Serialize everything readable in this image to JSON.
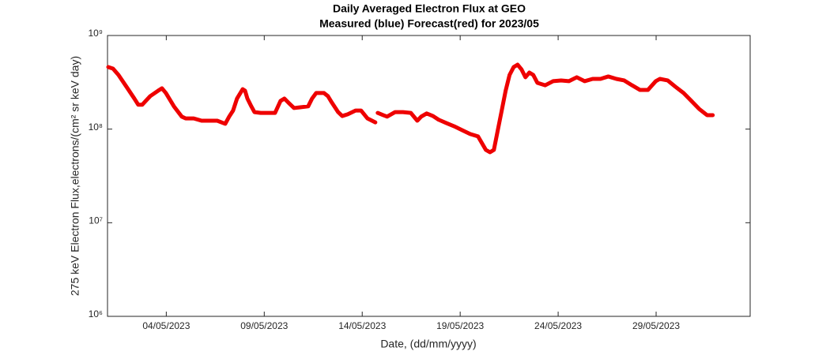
{
  "chart_data": {
    "type": "line",
    "title": "Daily Averaged Electron Flux at GEO",
    "subtitle": "Measured (blue) Forecast(red) for 2023/05",
    "xlabel": "Date, (dd/mm/yyyy)",
    "ylabel": "275 keV Electron Flux,electrons/(cm² sr keV day)",
    "log_y": true,
    "grid": false,
    "color": "#ee0000",
    "xlim": [
      1,
      33.8
    ],
    "xticks": [
      {
        "value": 4,
        "label": "04/05/2023"
      },
      {
        "value": 9,
        "label": "09/05/2023"
      },
      {
        "value": 14,
        "label": "14/05/2023"
      },
      {
        "value": 19,
        "label": "19/05/2023"
      },
      {
        "value": 24,
        "label": "24/05/2023"
      },
      {
        "value": 29,
        "label": "29/05/2023"
      }
    ],
    "ylim": [
      1000000,
      1000000000
    ],
    "yticks": [
      {
        "value": 1000000,
        "label": "10⁶"
      },
      {
        "value": 10000000,
        "label": "10⁷"
      },
      {
        "value": 100000000,
        "label": "10⁸"
      },
      {
        "value": 1000000000,
        "label": "10⁹"
      }
    ],
    "x": [
      1.04,
      1.28,
      1.56,
      1.97,
      2.37,
      2.57,
      2.77,
      3.18,
      3.58,
      3.78,
      3.98,
      4.39,
      4.79,
      4.99,
      5.4,
      5.8,
      6.2,
      6.6,
      7.01,
      7.21,
      7.41,
      7.61,
      7.9,
      8.02,
      8.14,
      8.34,
      8.5,
      8.82,
      9.23,
      9.55,
      9.83,
      10.03,
      10.23,
      10.52,
      10.84,
      11.24,
      11.44,
      11.65,
      12.05,
      12.25,
      12.45,
      12.77,
      12.98,
      13.26,
      13.66,
      13.94,
      14.27,
      14.67,
      14.73,
      14.79,
      15.07,
      15.27,
      15.68,
      16.08,
      16.48,
      16.81,
      17.01,
      17.29,
      17.61,
      17.9,
      18.3,
      18.7,
      19.1,
      19.51,
      19.91,
      20.31,
      20.52,
      20.72,
      20.92,
      21.12,
      21.32,
      21.52,
      21.73,
      21.93,
      22.13,
      22.33,
      22.53,
      22.73,
      22.94,
      23.34,
      23.74,
      24.15,
      24.55,
      24.95,
      25.35,
      25.76,
      26.16,
      26.56,
      26.97,
      27.37,
      27.77,
      28.18,
      28.58,
      28.98,
      29.19,
      29.59,
      29.99,
      30.4,
      30.8,
      31.2,
      31.6,
      31.89
    ],
    "values": [
      460000000.0,
      443000000.0,
      379000000.0,
      283000000.0,
      212000000.0,
      182000000.0,
      182000000.0,
      225000000.0,
      257000000.0,
      273000000.0,
      243000000.0,
      175000000.0,
      136000000.0,
      130000000.0,
      130000000.0,
      123000000.0,
      123000000.0,
      123000000.0,
      114000000.0,
      136000000.0,
      158000000.0,
      212000000.0,
      267000000.0,
      257000000.0,
      212000000.0,
      175000000.0,
      152000000.0,
      149000000.0,
      149000000.0,
      149000000.0,
      200000000.0,
      212000000.0,
      192000000.0,
      168000000.0,
      171000000.0,
      175000000.0,
      212000000.0,
      243000000.0,
      243000000.0,
      225000000.0,
      192000000.0,
      152000000.0,
      138000000.0,
      144000000.0,
      158000000.0,
      158000000.0,
      130000000.0,
      118000000.0,
      null,
      149000000.0,
      141000000.0,
      136000000.0,
      152000000.0,
      152000000.0,
      149000000.0,
      123000000.0,
      136000000.0,
      147000000.0,
      138000000.0,
      126000000.0,
      116000000.0,
      107000000.0,
      97500000.0,
      88600000.0,
      83600000.0,
      60000000.0,
      56600000.0,
      60000000.0,
      97500000.0,
      158000000.0,
      257000000.0,
      379000000.0,
      460000000.0,
      488000000.0,
      434000000.0,
      358000000.0,
      402000000.0,
      379000000.0,
      312000000.0,
      294000000.0,
      325000000.0,
      331000000.0,
      325000000.0,
      358000000.0,
      325000000.0,
      344000000.0,
      344000000.0,
      365000000.0,
      344000000.0,
      331000000.0,
      294000000.0,
      262000000.0,
      262000000.0,
      325000000.0,
      344000000.0,
      331000000.0,
      283000000.0,
      243000000.0,
      200000000.0,
      164000000.0,
      141000000.0,
      141000000.0
    ]
  }
}
